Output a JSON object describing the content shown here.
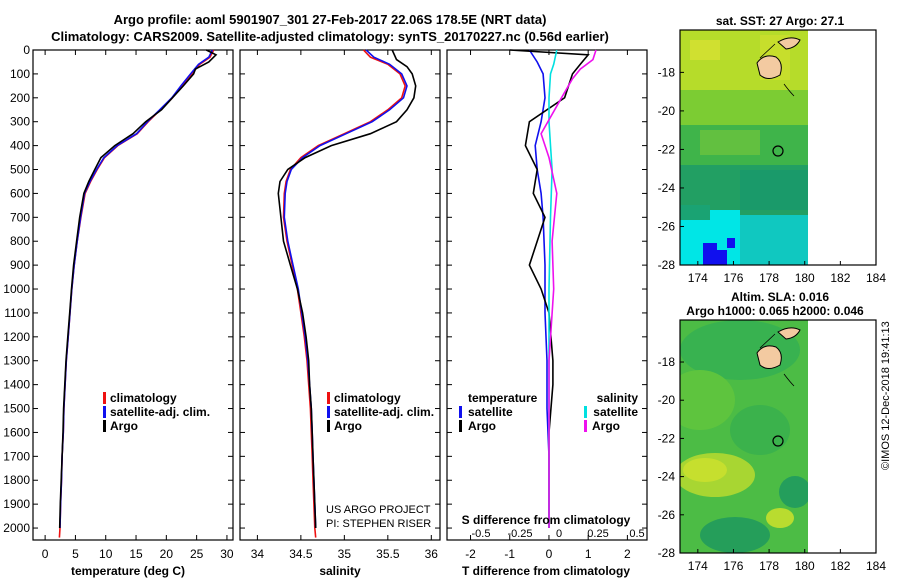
{
  "header": {
    "title_line1": "Argo profile: aoml 5901907_301 27-Feb-2017 22.06S 178.5E (NRT data)",
    "title_line2": "Climatology: CARS2009. Satellite-adjusted climatology: synTS_20170227.nc (0.56d earlier)"
  },
  "credit": [
    "US ARGO PROJECT",
    "PI: STEPHEN RISER"
  ],
  "stamp": "©IMOS 12-Dec-2018 19:41:13",
  "colors": {
    "climatology": "#ee1111",
    "satellite": "#1010ee",
    "argo": "#000000",
    "sat_salinity": "#00e0e0",
    "argo_salinity": "#ee11ee"
  },
  "chart_data": [
    {
      "type": "line",
      "id": "temperature",
      "xlabel": "temperature (deg C)",
      "ylabel": "",
      "xlim": [
        -2,
        31
      ],
      "ylim": [
        2050,
        0
      ],
      "xticks": [
        0,
        5,
        10,
        15,
        20,
        25,
        30
      ],
      "yticks": [
        0,
        100,
        200,
        300,
        400,
        500,
        600,
        700,
        800,
        900,
        1000,
        1100,
        1200,
        1300,
        1400,
        1500,
        1600,
        1700,
        1800,
        1900,
        2000
      ],
      "legend": [
        "climatology",
        "satellite-adj. clim.",
        "Argo"
      ],
      "series": [
        {
          "name": "climatology",
          "color": "#ee1111",
          "x": [
            27.8,
            27.2,
            25.5,
            24.2,
            22.5,
            21.0,
            19.0,
            17.0,
            15.2,
            12.0,
            9.8,
            8.6,
            7.5,
            6.6,
            5.9,
            5.3,
            4.8,
            4.4,
            4.1,
            3.8,
            3.5,
            3.3,
            3.1,
            3.0,
            2.8,
            2.7,
            2.55,
            2.45,
            2.35
          ],
          "y": [
            0,
            30,
            60,
            100,
            150,
            200,
            250,
            300,
            350,
            400,
            450,
            500,
            550,
            600,
            700,
            800,
            900,
            1000,
            1100,
            1200,
            1300,
            1400,
            1500,
            1600,
            1700,
            1800,
            1900,
            2000,
            2040
          ]
        },
        {
          "name": "satellite-adj. clim.",
          "color": "#1010ee",
          "x": [
            27.6,
            27.0,
            25.3,
            24.0,
            22.4,
            20.9,
            18.9,
            16.9,
            15.1,
            11.9,
            9.7,
            8.5,
            7.4,
            6.5,
            5.85,
            5.3,
            4.8,
            4.4,
            4.1,
            3.8,
            3.5,
            3.3,
            3.1,
            3.0,
            2.8,
            2.7,
            2.55,
            2.45
          ],
          "y": [
            0,
            30,
            60,
            100,
            150,
            200,
            250,
            300,
            350,
            400,
            450,
            500,
            550,
            600,
            700,
            800,
            900,
            1000,
            1100,
            1200,
            1300,
            1400,
            1500,
            1600,
            1700,
            1800,
            1900,
            2000
          ]
        },
        {
          "name": "Argo",
          "color": "#000000",
          "x": [
            26.6,
            28.2,
            27.0,
            24.8,
            24.5,
            22.8,
            21.0,
            19.2,
            16.6,
            14.5,
            11.5,
            9.2,
            8.2,
            7.2,
            6.4,
            5.7,
            5.2,
            4.7,
            4.35,
            4.05,
            3.75,
            3.45,
            3.25,
            3.05,
            2.95,
            2.8,
            2.65,
            2.5,
            2.4
          ],
          "y": [
            0,
            20,
            50,
            80,
            100,
            150,
            200,
            250,
            300,
            350,
            400,
            450,
            500,
            550,
            600,
            700,
            800,
            900,
            1000,
            1100,
            1200,
            1300,
            1400,
            1500,
            1600,
            1700,
            1800,
            1900,
            2000
          ]
        }
      ]
    },
    {
      "type": "line",
      "id": "salinity",
      "xlabel": "salinity",
      "ylabel": "",
      "xlim": [
        33.8,
        36.1
      ],
      "ylim": [
        2050,
        0
      ],
      "xticks": [
        34,
        34.5,
        35,
        35.5,
        36
      ],
      "legend": [
        "climatology",
        "satellite-adj. clim.",
        "Argo"
      ],
      "series": [
        {
          "name": "climatology",
          "color": "#ee1111",
          "x": [
            35.22,
            35.3,
            35.5,
            35.64,
            35.7,
            35.66,
            35.5,
            35.3,
            35.0,
            34.7,
            34.5,
            34.38,
            34.33,
            34.31,
            34.3,
            34.34,
            34.4,
            34.46,
            34.5,
            34.54,
            34.57,
            34.59,
            34.61,
            34.62,
            34.63,
            34.64,
            34.65,
            34.66,
            34.67
          ],
          "y": [
            0,
            30,
            60,
            100,
            150,
            200,
            250,
            300,
            350,
            400,
            450,
            500,
            550,
            600,
            700,
            800,
            900,
            1000,
            1100,
            1200,
            1300,
            1400,
            1500,
            1600,
            1700,
            1800,
            1900,
            2000,
            2040
          ]
        },
        {
          "name": "satellite-adj. clim.",
          "color": "#1010ee",
          "x": [
            35.25,
            35.34,
            35.52,
            35.66,
            35.72,
            35.68,
            35.52,
            35.32,
            35.02,
            34.72,
            34.52,
            34.39,
            34.34,
            34.32,
            34.31,
            34.35,
            34.41,
            34.47,
            34.51,
            34.55,
            34.58,
            34.6,
            34.62,
            34.63,
            34.64,
            34.65,
            34.66,
            34.67
          ],
          "y": [
            0,
            30,
            60,
            100,
            150,
            200,
            250,
            300,
            350,
            400,
            450,
            500,
            550,
            600,
            700,
            800,
            900,
            1000,
            1100,
            1200,
            1300,
            1400,
            1500,
            1600,
            1700,
            1800,
            1900,
            2000
          ]
        },
        {
          "name": "Argo",
          "color": "#000000",
          "x": [
            35.55,
            35.6,
            35.72,
            35.78,
            35.82,
            35.8,
            35.72,
            35.6,
            35.3,
            34.85,
            34.55,
            34.35,
            34.26,
            34.24,
            34.27,
            34.3,
            34.38,
            34.46,
            34.52,
            34.56,
            34.59,
            34.6,
            34.62,
            34.63,
            34.64,
            34.65,
            34.66,
            34.67
          ],
          "y": [
            0,
            40,
            70,
            100,
            150,
            200,
            250,
            300,
            350,
            400,
            450,
            500,
            550,
            600,
            700,
            800,
            900,
            1000,
            1100,
            1200,
            1300,
            1400,
            1500,
            1600,
            1700,
            1800,
            1900,
            2000
          ]
        }
      ]
    },
    {
      "type": "line",
      "id": "difference",
      "xlabel": "T difference from climatology",
      "sub_xlabel": "S difference from climatology",
      "ylabel": "",
      "xlim": [
        -2.6,
        2.5
      ],
      "ylim": [
        2050,
        0
      ],
      "xticks": [
        -2,
        -1,
        0,
        1,
        2
      ],
      "sxticks": [
        -0.5,
        -0.25,
        0,
        0.25,
        0.5
      ],
      "sxtick_labels": [
        "-0.5",
        "-0.25",
        "0",
        "0.25",
        "0.5"
      ],
      "legend_left_title": "temperature",
      "legend_right_title": "salinity",
      "legend": [
        "satellite",
        "Argo",
        "satellite",
        "Argo"
      ],
      "series": [
        {
          "name": "satellite",
          "quantity": "temperature",
          "color": "#1010ee",
          "x": [
            -0.5,
            -0.3,
            -0.15,
            -0.1,
            -0.2,
            -0.35,
            -0.3,
            -0.2,
            -0.15,
            -0.1,
            -0.1,
            -0.05,
            -0.05,
            0,
            0
          ],
          "y": [
            0,
            50,
            100,
            200,
            300,
            400,
            500,
            600,
            700,
            900,
            1100,
            1300,
            1500,
            1700,
            2000
          ]
        },
        {
          "name": "Argo",
          "quantity": "temperature",
          "color": "#000000",
          "x": [
            -1.0,
            1.0,
            0.8,
            0.6,
            0.4,
            -0.5,
            -0.6,
            -0.3,
            -0.4,
            -0.1,
            -0.3,
            -0.5,
            -0.2,
            0.0,
            0.1,
            0.1,
            0.0,
            0.0,
            0.0
          ],
          "y": [
            0,
            20,
            60,
            100,
            200,
            300,
            400,
            500,
            600,
            700,
            800,
            900,
            1000,
            1100,
            1300,
            1400,
            1600,
            1800,
            2000
          ]
        },
        {
          "name": "satellite",
          "quantity": "salinity",
          "color": "#00e0e0",
          "x": [
            0.05,
            0.03,
            0.01,
            0.0,
            0.0,
            0.01,
            0.02,
            0.01,
            0.0,
            0.0,
            0.0,
            0.0
          ],
          "y": [
            0,
            60,
            100,
            200,
            300,
            400,
            500,
            700,
            1000,
            1400,
            1800,
            2000
          ]
        },
        {
          "name": "Argo",
          "quantity": "salinity",
          "color": "#ee11ee",
          "x": [
            0.3,
            0.28,
            0.2,
            0.15,
            0.08,
            -0.05,
            0.0,
            0.05,
            0.02,
            0.03,
            0.0,
            0.0,
            0.0
          ],
          "y": [
            0,
            40,
            80,
            120,
            200,
            350,
            450,
            600,
            800,
            1000,
            1300,
            1600,
            2000
          ]
        }
      ]
    },
    {
      "type": "heatmap",
      "id": "sst_map",
      "title": "sat. SST: 27 Argo: 27.1",
      "xticks": [
        174,
        176,
        178,
        180,
        182,
        184
      ],
      "yticks": [
        -18,
        -20,
        -22,
        -24,
        -26,
        -28
      ],
      "xlim": [
        173,
        184
      ],
      "ylim": [
        -28,
        -15.8
      ],
      "argo_position": [
        178.5,
        -22.06
      ]
    },
    {
      "type": "heatmap",
      "id": "sla_map",
      "title_line1": "Altim. SLA: 0.016",
      "title_line2": "Argo h1000: 0.065 h2000: 0.046",
      "xticks": [
        174,
        176,
        178,
        180,
        182,
        184
      ],
      "yticks": [
        -18,
        -20,
        -22,
        -24,
        -26,
        -28
      ],
      "xlim": [
        173,
        184
      ],
      "ylim": [
        -28,
        -15.8
      ],
      "argo_position": [
        178.5,
        -22.06
      ]
    }
  ]
}
